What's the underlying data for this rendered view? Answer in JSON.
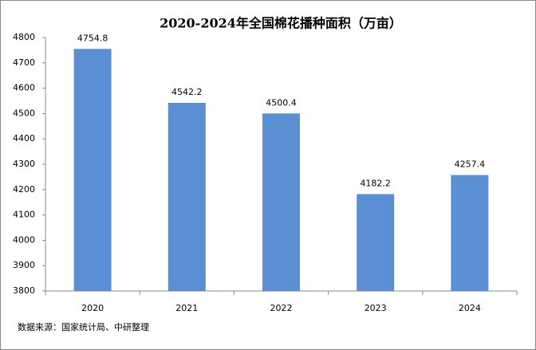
{
  "chart_data": {
    "type": "bar",
    "title": "2020-2024年全国棉花播种面积（万亩）",
    "categories": [
      "2020",
      "2021",
      "2022",
      "2023",
      "2024"
    ],
    "values": [
      4754.8,
      4542.2,
      4500.4,
      4182.2,
      4257.4
    ],
    "color": "#5b8fd4",
    "ylim": [
      3800,
      4800
    ],
    "yticks": [
      3800,
      3900,
      4000,
      4100,
      4200,
      4300,
      4400,
      4500,
      4600,
      4700,
      4800
    ],
    "source": "数据来源：国家统计局、中研整理"
  }
}
